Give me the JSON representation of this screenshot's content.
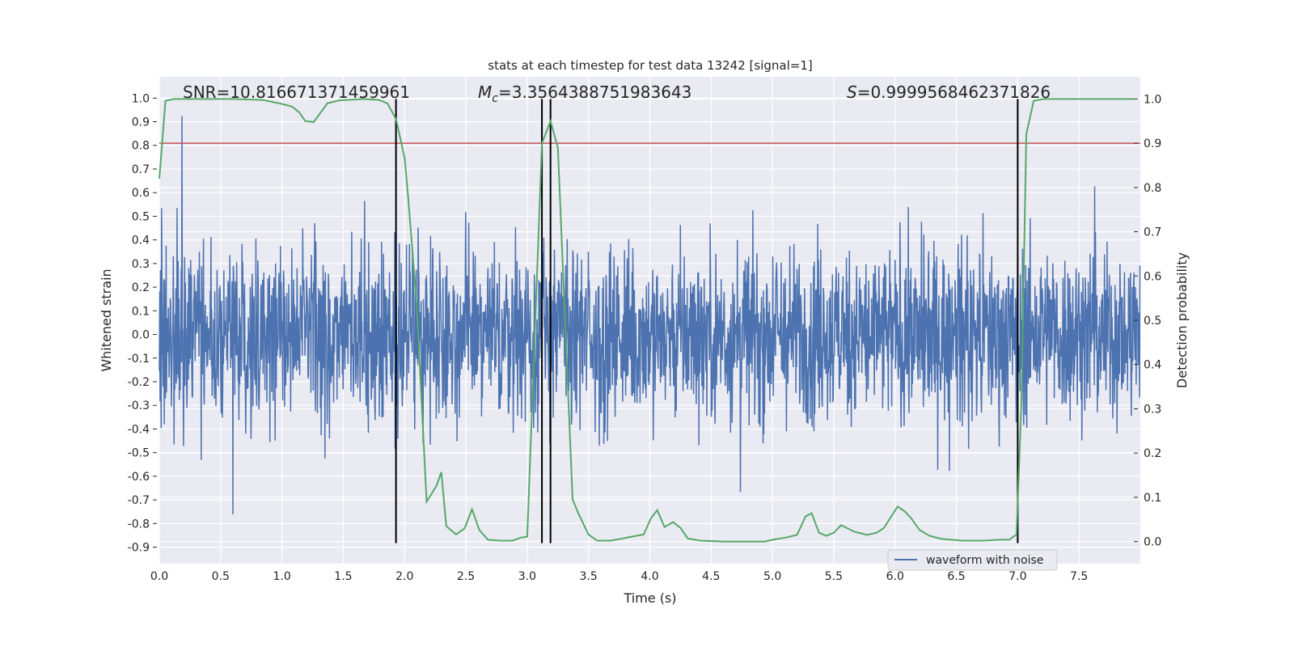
{
  "chart_data": {
    "type": "line",
    "title": "stats at each timestep for test data 13242 [signal=1]",
    "xlabel": "Time (s)",
    "ylabel": "Whitened strain",
    "ylabel_right": "Detection probability",
    "xlim": [
      0,
      8
    ],
    "ylim": [
      -0.97,
      1.09
    ],
    "ylim_right": [
      -0.05,
      1.05
    ],
    "xticks": [
      "0.0",
      "0.5",
      "1.0",
      "1.5",
      "2.0",
      "2.5",
      "3.0",
      "3.5",
      "4.0",
      "4.5",
      "5.0",
      "5.5",
      "6.0",
      "6.5",
      "7.0",
      "7.5"
    ],
    "yticks": [
      "1.0",
      "0.9",
      "0.8",
      "0.7",
      "0.6",
      "0.5",
      "0.4",
      "0.3",
      "0.2",
      "0.1",
      "0.0",
      "-0.1",
      "-0.2",
      "-0.3",
      "-0.4",
      "-0.5",
      "-0.6",
      "-0.7",
      "-0.8",
      "-0.9"
    ],
    "yticks_right": [
      "1.0",
      "0.9",
      "0.8",
      "0.7",
      "0.6",
      "0.5",
      "0.4",
      "0.3",
      "0.2",
      "0.1",
      "0.0"
    ],
    "grid": true,
    "legend": {
      "entries": [
        "waveform with noise"
      ],
      "placement": "lower-right"
    },
    "annotations": {
      "snr": "SNR=10.816671371459961",
      "mc_symbol": "M",
      "mc_sub": "c",
      "mc_value": "=3.3564388751983643",
      "s_symbol": "S",
      "s_value": "=0.9999568462371826"
    },
    "threshold_right": 0.9,
    "vertical_lines": [
      1.93,
      3.12,
      3.19,
      7.0
    ],
    "waveform": {
      "name": "waveform with noise",
      "std": 0.2,
      "t_range": [
        0,
        8
      ],
      "peak_abs": 1.0
    },
    "detection_probability": {
      "t": [
        0.0,
        0.05,
        0.12,
        0.6,
        0.84,
        0.98,
        1.08,
        1.14,
        1.19,
        1.26,
        1.37,
        1.47,
        1.67,
        1.79,
        1.86,
        1.93,
        2.0,
        2.03,
        2.1,
        2.18,
        2.26,
        2.3,
        2.34,
        2.42,
        2.49,
        2.55,
        2.61,
        2.68,
        2.78,
        2.88,
        2.95,
        3.0,
        3.12,
        3.19,
        3.25,
        3.31,
        3.37,
        3.42,
        3.5,
        3.57,
        3.68,
        3.78,
        3.85,
        3.95,
        4.01,
        4.06,
        4.12,
        4.19,
        4.25,
        4.31,
        4.41,
        4.6,
        4.94,
        5.0,
        5.11,
        5.2,
        5.27,
        5.32,
        5.38,
        5.44,
        5.5,
        5.56,
        5.67,
        5.77,
        5.85,
        5.91,
        5.96,
        6.02,
        6.08,
        6.13,
        6.2,
        6.28,
        6.38,
        6.55,
        6.72,
        6.85,
        6.93,
        6.99,
        7.03,
        7.07,
        7.13,
        7.21,
        7.95
      ],
      "p": [
        0.82,
        0.996,
        1.0,
        1.0,
        0.998,
        0.99,
        0.983,
        0.97,
        0.95,
        0.948,
        0.99,
        0.997,
        1.0,
        0.998,
        0.99,
        0.955,
        0.867,
        0.775,
        0.53,
        0.09,
        0.126,
        0.157,
        0.035,
        0.016,
        0.03,
        0.073,
        0.026,
        0.004,
        0.002,
        0.002,
        0.009,
        0.011,
        0.9,
        0.95,
        0.89,
        0.49,
        0.095,
        0.062,
        0.016,
        0.002,
        0.002,
        0.007,
        0.011,
        0.016,
        0.053,
        0.071,
        0.033,
        0.044,
        0.031,
        0.007,
        0.002,
        0.0,
        0.0,
        0.004,
        0.009,
        0.015,
        0.057,
        0.064,
        0.02,
        0.013,
        0.02,
        0.037,
        0.022,
        0.015,
        0.02,
        0.031,
        0.053,
        0.079,
        0.068,
        0.053,
        0.026,
        0.013,
        0.006,
        0.002,
        0.002,
        0.004,
        0.004,
        0.016,
        0.31,
        0.92,
        0.996,
        1.0,
        1.0
      ]
    }
  },
  "colors": {
    "axes_bg": "#eaeaf2",
    "waveform": "#4c72b0",
    "probability": "#55a868",
    "threshold": "#c44e52",
    "vlines": "#000000"
  }
}
